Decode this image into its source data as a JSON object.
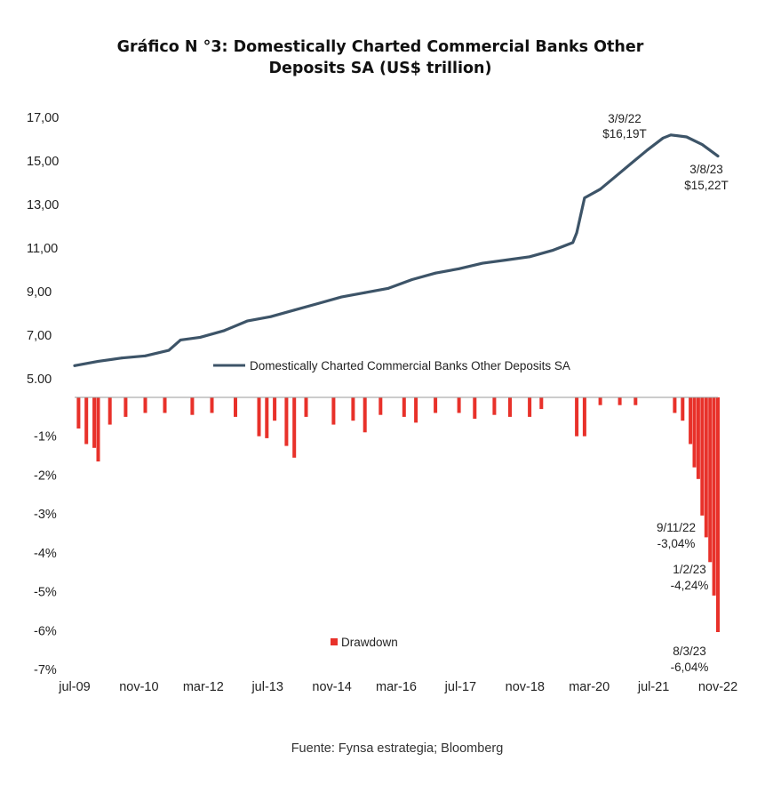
{
  "title_line1": "Gráfico N °3: Domestically Charted Commercial Banks Other",
  "title_line2": "Deposits SA (US$ trillion)",
  "source": "Fuente: Fynsa estrategia; Bloomberg",
  "colors": {
    "deposits_line": "#3d5468",
    "drawdown_bars": "#e8312a"
  },
  "chart_data": [
    {
      "type": "line",
      "title": "",
      "xlabel": "",
      "ylabel": "",
      "ylim": [
        5,
        17
      ],
      "y_ticks": [
        "5.00",
        "7,00",
        "9,00",
        "11,00",
        "13,00",
        "15,00",
        "17,00"
      ],
      "grid": false,
      "legend_position": "bottom-center",
      "series": [
        {
          "name": "Domestically Charted Commercial Banks Other Deposits SA",
          "points": [
            [
              "2009-07",
              5.6
            ],
            [
              "2010-01",
              5.8
            ],
            [
              "2010-07",
              5.95
            ],
            [
              "2011-01",
              6.05
            ],
            [
              "2011-07",
              6.3
            ],
            [
              "2011-10",
              6.78
            ],
            [
              "2012-03",
              6.9
            ],
            [
              "2012-09",
              7.2
            ],
            [
              "2013-03",
              7.65
            ],
            [
              "2013-09",
              7.85
            ],
            [
              "2014-03",
              8.15
            ],
            [
              "2014-09",
              8.45
            ],
            [
              "2015-03",
              8.75
            ],
            [
              "2015-09",
              8.95
            ],
            [
              "2016-03",
              9.15
            ],
            [
              "2016-09",
              9.55
            ],
            [
              "2017-03",
              9.85
            ],
            [
              "2017-09",
              10.05
            ],
            [
              "2018-03",
              10.3
            ],
            [
              "2018-09",
              10.45
            ],
            [
              "2019-03",
              10.6
            ],
            [
              "2019-09",
              10.9
            ],
            [
              "2020-02",
              11.25
            ],
            [
              "2020-03",
              11.7
            ],
            [
              "2020-05",
              13.3
            ],
            [
              "2020-09",
              13.7
            ],
            [
              "2021-01",
              14.3
            ],
            [
              "2021-05",
              14.9
            ],
            [
              "2021-09",
              15.5
            ],
            [
              "2022-01",
              16.05
            ],
            [
              "2022-03",
              16.19
            ],
            [
              "2022-07",
              16.1
            ],
            [
              "2022-11",
              15.75
            ],
            [
              "2023-03",
              15.22
            ]
          ]
        }
      ],
      "annotations": [
        {
          "date": "3/9/22",
          "value": "$16,19T"
        },
        {
          "date": "3/8/23",
          "value": "$15,22T"
        }
      ]
    },
    {
      "type": "bar",
      "title": "",
      "xlabel": "",
      "ylabel": "",
      "ylim": [
        -7,
        0
      ],
      "y_ticks": [
        "-1%",
        "-2%",
        "-3%",
        "-4%",
        "-5%",
        "-6%",
        "-7%"
      ],
      "x_ticks": [
        "jul-09",
        "nov-10",
        "mar-12",
        "jul-13",
        "nov-14",
        "mar-16",
        "jul-17",
        "nov-18",
        "mar-20",
        "jul-21",
        "nov-22"
      ],
      "x_range": [
        "2009-07",
        "2023-03"
      ],
      "legend_position": "bottom-center",
      "series": [
        {
          "name": "Drawdown",
          "points": [
            [
              "2009-08",
              -0.8
            ],
            [
              "2009-10",
              -1.2
            ],
            [
              "2009-12",
              -1.3
            ],
            [
              "2010-01",
              -1.65
            ],
            [
              "2010-04",
              -0.7
            ],
            [
              "2010-08",
              -0.5
            ],
            [
              "2011-01",
              -0.4
            ],
            [
              "2011-06",
              -0.4
            ],
            [
              "2012-01",
              -0.45
            ],
            [
              "2012-06",
              -0.4
            ],
            [
              "2012-12",
              -0.5
            ],
            [
              "2013-06",
              -1.0
            ],
            [
              "2013-08",
              -1.05
            ],
            [
              "2013-10",
              -0.6
            ],
            [
              "2014-01",
              -1.25
            ],
            [
              "2014-03",
              -1.55
            ],
            [
              "2014-06",
              -0.5
            ],
            [
              "2015-01",
              -0.7
            ],
            [
              "2015-06",
              -0.6
            ],
            [
              "2015-09",
              -0.9
            ],
            [
              "2016-01",
              -0.45
            ],
            [
              "2016-07",
              -0.5
            ],
            [
              "2016-10",
              -0.65
            ],
            [
              "2017-03",
              -0.4
            ],
            [
              "2017-09",
              -0.4
            ],
            [
              "2018-01",
              -0.55
            ],
            [
              "2018-06",
              -0.45
            ],
            [
              "2018-10",
              -0.5
            ],
            [
              "2019-03",
              -0.5
            ],
            [
              "2019-06",
              -0.3
            ],
            [
              "2020-03",
              -1.0
            ],
            [
              "2020-05",
              -1.0
            ],
            [
              "2020-09",
              -0.2
            ],
            [
              "2021-02",
              -0.2
            ],
            [
              "2021-06",
              -0.2
            ],
            [
              "2022-04",
              -0.4
            ],
            [
              "2022-06",
              -0.6
            ],
            [
              "2022-08",
              -1.2
            ],
            [
              "2022-09",
              -1.8
            ],
            [
              "2022-10",
              -2.1
            ],
            [
              "2022-11",
              -3.04
            ],
            [
              "2022-12",
              -3.6
            ],
            [
              "2023-01",
              -4.24
            ],
            [
              "2023-02",
              -5.1
            ],
            [
              "2023-03",
              -6.04
            ]
          ]
        }
      ],
      "annotations": [
        {
          "date": "9/11/22",
          "value": "-3,04%"
        },
        {
          "date": "1/2/23",
          "value": "-4,24%"
        },
        {
          "date": "8/3/23",
          "value": "-6,04%"
        }
      ]
    }
  ]
}
